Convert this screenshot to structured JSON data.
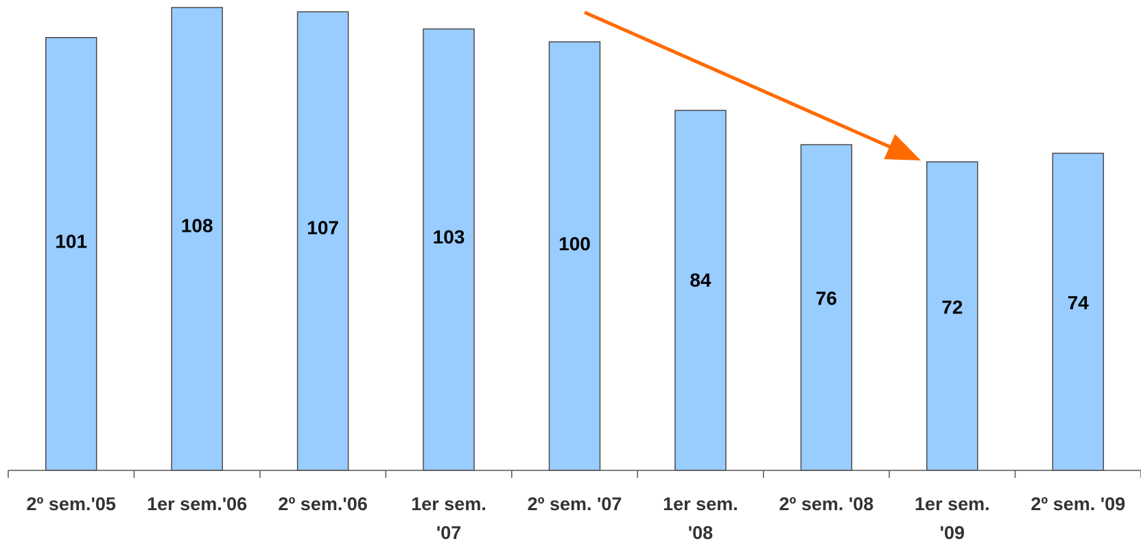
{
  "chart_data": {
    "type": "bar",
    "categories": [
      [
        "2º sem.'05"
      ],
      [
        "1er sem.'06"
      ],
      [
        "2º sem.'06"
      ],
      [
        "1er sem.",
        "'07"
      ],
      [
        "2º sem. '07"
      ],
      [
        "1er sem.",
        "'08"
      ],
      [
        "2º sem. '08"
      ],
      [
        "1er sem.",
        "'09"
      ],
      [
        "2º sem. '09"
      ]
    ],
    "values": [
      101,
      108,
      107,
      103,
      100,
      84,
      76,
      72,
      74
    ],
    "ylim": [
      0,
      110
    ],
    "grid": false,
    "legend": "none",
    "annotation": "arrow indicating downward trend from 2º sem. '07 to 1er sem. '09"
  },
  "colors": {
    "bar_fill": "#99ccff",
    "arrow": "#ff6a00"
  }
}
